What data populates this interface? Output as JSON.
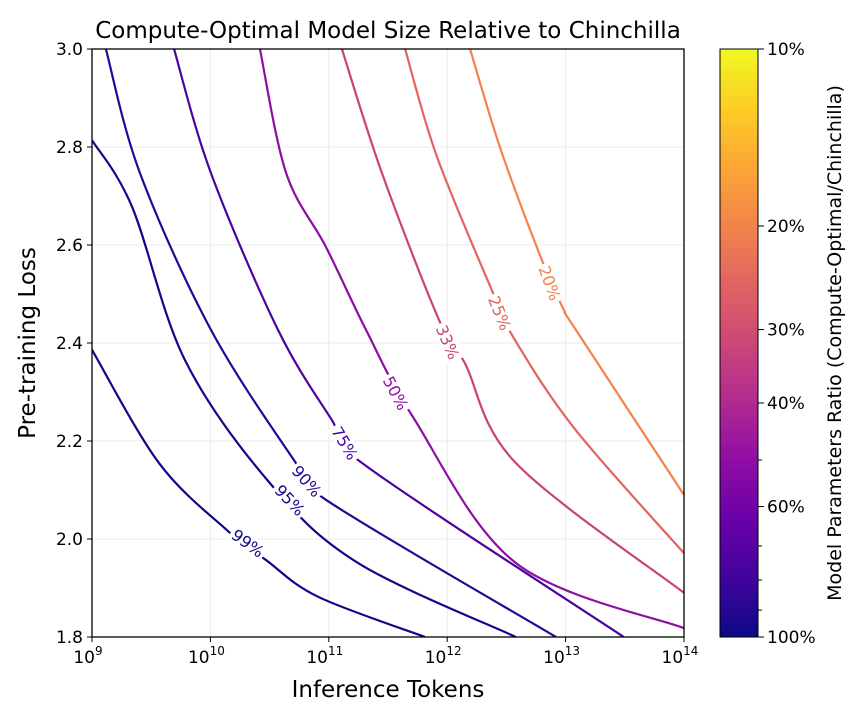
{
  "chart_data": {
    "type": "line",
    "subtype": "contour",
    "title": "Compute-Optimal Model Size Relative to Chinchilla",
    "xlabel": "Inference Tokens",
    "ylabel": "Pre-training Loss",
    "xscale": "log",
    "xlim": [
      1000000000.0,
      100000000000000.0
    ],
    "ylim": [
      1.8,
      3.0
    ],
    "grid": true,
    "x_ticks": [
      {
        "value": 1000000000.0,
        "base": "10",
        "exp": "9"
      },
      {
        "value": 10000000000.0,
        "base": "10",
        "exp": "10"
      },
      {
        "value": 100000000000.0,
        "base": "10",
        "exp": "11"
      },
      {
        "value": 1000000000000.0,
        "base": "10",
        "exp": "12"
      },
      {
        "value": 10000000000000.0,
        "base": "10",
        "exp": "13"
      },
      {
        "value": 100000000000000.0,
        "base": "10",
        "exp": "14"
      }
    ],
    "y_ticks": [
      "1.8",
      "2.0",
      "2.2",
      "2.4",
      "2.6",
      "2.8",
      "3.0"
    ],
    "colormap": "plasma",
    "colorbar": {
      "label": "Model Parameters Ratio (Compute-Optimal/Chinchilla)",
      "scale": "log",
      "range": [
        10,
        100
      ],
      "ticks": [
        "10%",
        "20%",
        "30%",
        "40%",
        "60%",
        "100%"
      ],
      "tick_values": [
        10,
        20,
        30,
        40,
        60,
        100
      ],
      "minor_tick_values": [
        50,
        70,
        80,
        90
      ]
    },
    "series": [
      {
        "name": "99%",
        "ratio": 99,
        "color": "#0f0888",
        "points": [
          [
            1000000000.0,
            2.386
          ],
          [
            3680000000.0,
            2.155
          ],
          [
            13800000000.0,
            2.018
          ],
          [
            29500000000.0,
            1.957
          ],
          [
            81300000000.0,
            1.882
          ],
          [
            650000000000.0,
            1.8
          ]
        ]
      },
      {
        "name": "95%",
        "ratio": 95,
        "color": "#17068b",
        "points": [
          [
            1000000000.0,
            2.814
          ],
          [
            2180000000.0,
            2.678
          ],
          [
            6100000000.0,
            2.365
          ],
          [
            31800000000.0,
            2.114
          ],
          [
            177000000000.0,
            1.951
          ],
          [
            3800000000000.0,
            1.8
          ]
        ]
      },
      {
        "name": "90%",
        "ratio": 90,
        "color": "#280592",
        "points": [
          [
            1310000000.0,
            3.0
          ],
          [
            2540000000.0,
            2.747
          ],
          [
            10100000000.0,
            2.427
          ],
          [
            50800000000.0,
            2.161
          ],
          [
            94600000000.0,
            2.08
          ],
          [
            8300000000000.0,
            1.8
          ]
        ]
      },
      {
        "name": "75%",
        "ratio": 75,
        "color": "#4b03a0",
        "points": [
          [
            4930000000.0,
            3.0
          ],
          [
            10100000000.0,
            2.747
          ],
          [
            37200000000.0,
            2.427
          ],
          [
            106000000000.0,
            2.243
          ],
          [
            191000000000.0,
            2.155
          ],
          [
            31000000000000.0,
            1.8
          ]
        ]
      },
      {
        "name": "50%",
        "ratio": 50,
        "color": "#8f0da4",
        "points": [
          [
            26200000000.0,
            3.0
          ],
          [
            43600000000.0,
            2.747
          ],
          [
            94600000000.0,
            2.596
          ],
          [
            206000000000.0,
            2.427
          ],
          [
            514000000000.0,
            2.249
          ],
          [
            3800000000000.0,
            1.951
          ],
          [
            100000000000000.0,
            1.818
          ]
        ]
      },
      {
        "name": "33%",
        "ratio": 33,
        "color": "#c8437b",
        "points": [
          [
            129000000000.0,
            3.0
          ],
          [
            281000000000.0,
            2.747
          ],
          [
            853000000000.0,
            2.447
          ],
          [
            1410000000000.0,
            2.359
          ],
          [
            3800000000000.0,
            2.155
          ],
          [
            100000000000000.0,
            1.89
          ]
        ]
      },
      {
        "name": "25%",
        "ratio": 25,
        "color": "#e16462",
        "points": [
          [
            441000000000.0,
            3.0
          ],
          [
            820000000000.0,
            2.78
          ],
          [
            2440000000000.0,
            2.502
          ],
          [
            3740000000000.0,
            2.406
          ],
          [
            12200000000000.0,
            2.222
          ],
          [
            100000000000000.0,
            1.971
          ]
        ]
      },
      {
        "name": "20%",
        "ratio": 20,
        "color": "#f2844b",
        "points": [
          [
            1560000000000.0,
            3.0
          ],
          [
            2840000000000.0,
            2.794
          ],
          [
            6310000000000.0,
            2.569
          ],
          [
            9680000000000.0,
            2.467
          ],
          [
            12200000000000.0,
            2.427
          ],
          [
            100000000000000.0,
            2.09
          ]
        ]
      }
    ]
  }
}
